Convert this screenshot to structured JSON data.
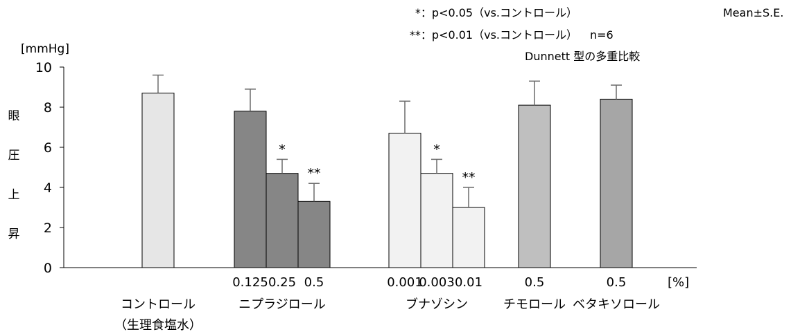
{
  "chart_data": {
    "type": "bar",
    "ylabel_unit": "[mmHg]",
    "ylabel_chars": [
      "眼",
      "圧",
      "上",
      "昇"
    ],
    "ylim": [
      0,
      10
    ],
    "yticks": [
      "0",
      "2",
      "4",
      "6",
      "8",
      "10"
    ],
    "x_unit": "[%]",
    "groups": [
      {
        "name": "コントロール",
        "sub": "（生理食塩水）",
        "color": "#e6e6e6",
        "bars": [
          {
            "conc": "",
            "value": 8.7,
            "err": 0.9,
            "sig": ""
          }
        ]
      },
      {
        "name": "ニプラジロール",
        "sub": "",
        "color": "#868686",
        "bars": [
          {
            "conc": "0.125",
            "value": 7.8,
            "err": 1.1,
            "sig": ""
          },
          {
            "conc": "0.25",
            "value": 4.7,
            "err": 0.7,
            "sig": "*"
          },
          {
            "conc": "0.5",
            "value": 3.3,
            "err": 0.9,
            "sig": "**"
          }
        ]
      },
      {
        "name": "ブナゾシン",
        "sub": "",
        "color": "#f2f2f2",
        "bars": [
          {
            "conc": "0.001",
            "value": 6.7,
            "err": 1.6,
            "sig": ""
          },
          {
            "conc": "0.003",
            "value": 4.7,
            "err": 0.7,
            "sig": "*"
          },
          {
            "conc": "0.01",
            "value": 3.0,
            "err": 1.0,
            "sig": "**"
          }
        ]
      },
      {
        "name": "チモロール",
        "sub": "",
        "color": "#bfbfbf",
        "bars": [
          {
            "conc": "0.5",
            "value": 8.1,
            "err": 1.2,
            "sig": ""
          }
        ]
      },
      {
        "name": "ベタキソロール",
        "sub": "",
        "color": "#a6a6a6",
        "bars": [
          {
            "conc": "0.5",
            "value": 8.4,
            "err": 0.7,
            "sig": ""
          }
        ]
      }
    ]
  },
  "notes": {
    "sig1": "*：p<0.05（vs.コントロール）",
    "mean_se": "Mean±S.E.",
    "sig2": "**：p<0.01（vs.コントロール）",
    "n": "n=6",
    "test": "Dunnett 型の多重比較"
  }
}
